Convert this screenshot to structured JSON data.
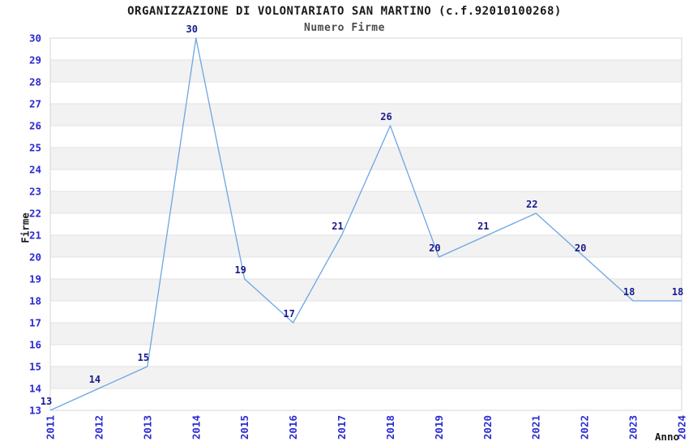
{
  "chart_data": {
    "type": "line",
    "title": "ORGANIZZAZIONE DI VOLONTARIATO SAN MARTINO (c.f.92010100268)",
    "subtitle": "Numero Firme",
    "ylabel": "Firme",
    "xlabel": "Anno",
    "categories": [
      "2011",
      "2012",
      "2013",
      "2014",
      "2015",
      "2016",
      "2017",
      "2018",
      "2019",
      "2020",
      "2021",
      "2022",
      "2023",
      "2024"
    ],
    "values": [
      13,
      14,
      15,
      30,
      19,
      17,
      21,
      26,
      20,
      21,
      22,
      20,
      18,
      18
    ],
    "point_labels": [
      "13",
      "14",
      "15",
      "30",
      "19",
      "17",
      "21",
      "26",
      "20",
      "21",
      "22",
      "20",
      "18",
      "18"
    ],
    "ylim": [
      13,
      30
    ],
    "yticks": [
      13,
      14,
      15,
      16,
      17,
      18,
      19,
      20,
      21,
      22,
      23,
      24,
      25,
      26,
      27,
      28,
      29,
      30
    ],
    "grid": "horizontal-bands",
    "legend": "none",
    "markers": "none",
    "colors": {
      "line": "#6ca6e2",
      "tick_label": "#2a2ad2",
      "point_label": "#1a1a8c",
      "title": "#1a1a1a",
      "subtitle": "#4d4d4d",
      "axis_title": "#1a1a1a",
      "grid_line": "#e2e2e2",
      "band": "#f2f2f2",
      "band_alt": "#ffffff",
      "border": "#d4d4d4",
      "background": "#ffffff"
    }
  }
}
